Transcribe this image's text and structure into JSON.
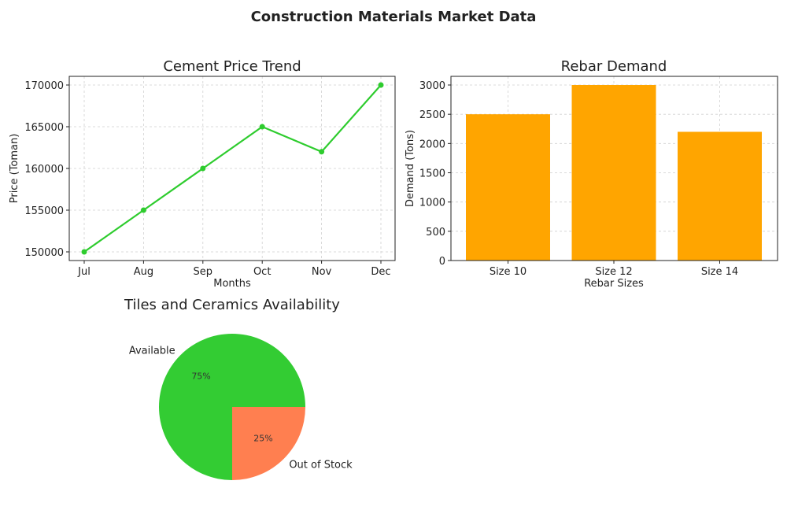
{
  "suptitle": "Construction Materials Market Data",
  "chart_data": [
    {
      "type": "line",
      "title": "Cement Price Trend",
      "xlabel": "Months",
      "ylabel": "Price (Toman)",
      "categories": [
        "Jul",
        "Aug",
        "Sep",
        "Oct",
        "Nov",
        "Dec"
      ],
      "values": [
        150000,
        155000,
        160000,
        165000,
        162000,
        170000
      ],
      "ylim": [
        150000,
        170000
      ],
      "yticks": [
        150000,
        155000,
        160000,
        165000,
        170000
      ],
      "color": "#2ecc2e",
      "grid": true
    },
    {
      "type": "bar",
      "title": "Rebar Demand",
      "xlabel": "Rebar Sizes",
      "ylabel": "Demand (Tons)",
      "categories": [
        "Size 10",
        "Size 12",
        "Size 14"
      ],
      "values": [
        2500,
        3000,
        2200
      ],
      "ylim": [
        0,
        3000
      ],
      "yticks": [
        0,
        500,
        1000,
        1500,
        2000,
        2500,
        3000
      ],
      "color": "#ffa500",
      "grid": true
    },
    {
      "type": "pie",
      "title": "Tiles and Ceramics Availability",
      "labels": [
        "Available",
        "Out of Stock"
      ],
      "values": [
        75,
        25
      ],
      "pct_labels": [
        "75%",
        "25%"
      ],
      "colors": [
        "#33cc33",
        "#ff7f50"
      ]
    }
  ]
}
